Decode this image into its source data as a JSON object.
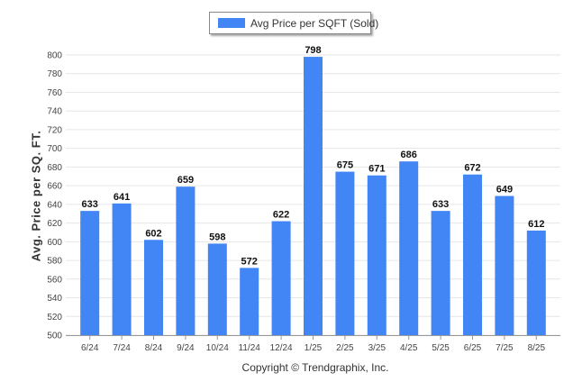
{
  "chart_data": {
    "type": "bar",
    "categories": [
      "6/24",
      "7/24",
      "8/24",
      "9/24",
      "10/24",
      "11/24",
      "12/24",
      "1/25",
      "2/25",
      "3/25",
      "4/25",
      "5/25",
      "6/25",
      "7/25",
      "8/25"
    ],
    "series": [
      {
        "name": "Avg Price per SQFT (Sold)",
        "values": [
          633,
          641,
          602,
          659,
          598,
          572,
          622,
          798,
          675,
          671,
          686,
          633,
          672,
          649,
          612
        ]
      }
    ],
    "ylabel": "Avg. Price per SQ. FT.",
    "xlabel": "",
    "ylim": [
      500,
      800
    ],
    "yticks": [
      500,
      520,
      540,
      560,
      580,
      600,
      620,
      640,
      660,
      680,
      700,
      720,
      740,
      760,
      780,
      800
    ],
    "grid": true,
    "legend_position": "top-center",
    "bar_color": "#4285F4",
    "data_labels": true
  },
  "footer": {
    "copyright": "Copyright © Trendgraphix, Inc."
  }
}
